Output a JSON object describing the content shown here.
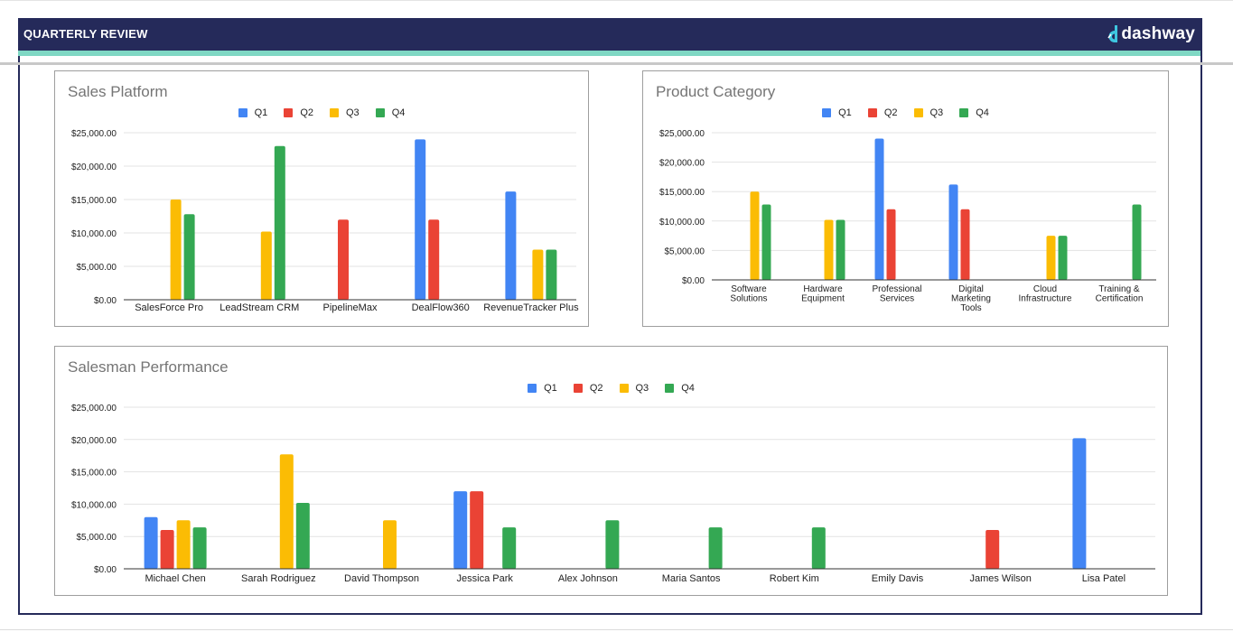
{
  "header": {
    "title": "QUARTERLY REVIEW",
    "logo_text": "dashway",
    "colors": {
      "bar": "#252a5a",
      "stripe": "#7fd8c4",
      "logo_accent": "#3ec6e0"
    }
  },
  "legend": {
    "series": [
      "Q1",
      "Q2",
      "Q3",
      "Q4"
    ],
    "colors": [
      "#4285f4",
      "#ea4335",
      "#fbbc04",
      "#34a853"
    ]
  },
  "chart_data": [
    {
      "id": "sales-platform",
      "type": "bar",
      "title": "Sales Platform",
      "ylim": [
        0,
        25000
      ],
      "yticks": [
        "$0.00",
        "$5,000.00",
        "$10,000.00",
        "$15,000.00",
        "$20,000.00",
        "$25,000.00"
      ],
      "categories": [
        "SalesForce Pro",
        "LeadStream CRM",
        "PipelineMax",
        "DealFlow360",
        "RevenueTracker Plus"
      ],
      "series": [
        {
          "name": "Q1",
          "values": [
            0,
            0,
            0,
            24000,
            16200
          ]
        },
        {
          "name": "Q2",
          "values": [
            0,
            0,
            12000,
            12000,
            0
          ]
        },
        {
          "name": "Q3",
          "values": [
            15000,
            10200,
            0,
            0,
            7500
          ]
        },
        {
          "name": "Q4",
          "values": [
            12800,
            23000,
            0,
            0,
            7500
          ]
        }
      ],
      "legend_position": "top",
      "grid": true
    },
    {
      "id": "product-category",
      "type": "bar",
      "title": "Product Category",
      "ylim": [
        0,
        25000
      ],
      "yticks": [
        "$0.00",
        "$5,000.00",
        "$10,000.00",
        "$15,000.00",
        "$20,000.00",
        "$25,000.00"
      ],
      "categories": [
        [
          "Software",
          "Solutions"
        ],
        [
          "Hardware",
          "Equipment"
        ],
        [
          "Professional",
          "Services"
        ],
        [
          "Digital",
          "Marketing",
          "Tools"
        ],
        [
          "Cloud",
          "Infrastructure"
        ],
        [
          "Training &",
          "Certification"
        ]
      ],
      "series": [
        {
          "name": "Q1",
          "values": [
            0,
            0,
            24000,
            16200,
            0,
            0
          ]
        },
        {
          "name": "Q2",
          "values": [
            0,
            0,
            12000,
            12000,
            0,
            0
          ]
        },
        {
          "name": "Q3",
          "values": [
            15000,
            10200,
            0,
            0,
            7500,
            0
          ]
        },
        {
          "name": "Q4",
          "values": [
            12800,
            10200,
            0,
            0,
            7500,
            12800
          ]
        }
      ],
      "legend_position": "top",
      "grid": true
    },
    {
      "id": "salesman-performance",
      "type": "bar",
      "title": "Salesman Performance",
      "ylim": [
        0,
        25000
      ],
      "yticks": [
        "$0.00",
        "$5,000.00",
        "$10,000.00",
        "$15,000.00",
        "$20,000.00",
        "$25,000.00"
      ],
      "categories": [
        "Michael Chen",
        "Sarah Rodriguez",
        "David Thompson",
        "Jessica Park",
        "Alex Johnson",
        "Maria Santos",
        "Robert Kim",
        "Emily Davis",
        "James Wilson",
        "Lisa Patel"
      ],
      "series": [
        {
          "name": "Q1",
          "values": [
            8000,
            0,
            0,
            12000,
            0,
            0,
            0,
            0,
            0,
            20200
          ]
        },
        {
          "name": "Q2",
          "values": [
            6000,
            0,
            0,
            12000,
            0,
            0,
            0,
            0,
            6000,
            0
          ]
        },
        {
          "name": "Q3",
          "values": [
            7500,
            17700,
            7500,
            0,
            0,
            0,
            0,
            0,
            0,
            0
          ]
        },
        {
          "name": "Q4",
          "values": [
            6400,
            10200,
            0,
            6400,
            7500,
            6400,
            6400,
            0,
            0,
            0
          ]
        }
      ],
      "legend_position": "top",
      "grid": true
    }
  ]
}
